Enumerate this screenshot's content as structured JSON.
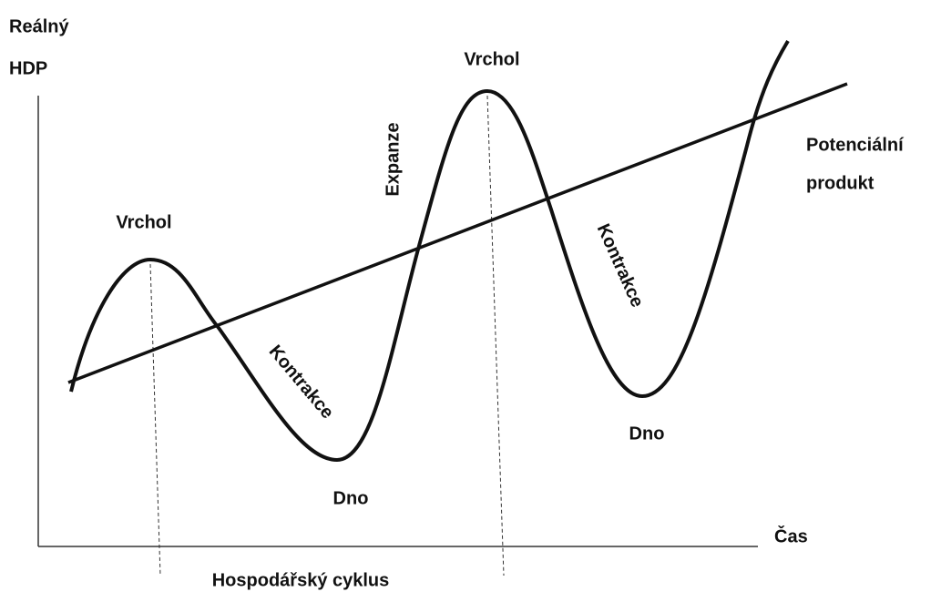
{
  "labels": {
    "y_axis": [
      "Reálný",
      "HDP"
    ],
    "x_axis": "Čas",
    "trend": [
      "Potenciální",
      "produkt"
    ],
    "peak_1": "Vrchol",
    "peak_2": "Vrchol",
    "trough_1": "Dno",
    "trough_2": "Dno",
    "contraction_1": "Kontrakce",
    "contraction_2": "Kontrakce",
    "expansion": "Expanze",
    "cycle": "Hospodářský cyklus"
  }
}
